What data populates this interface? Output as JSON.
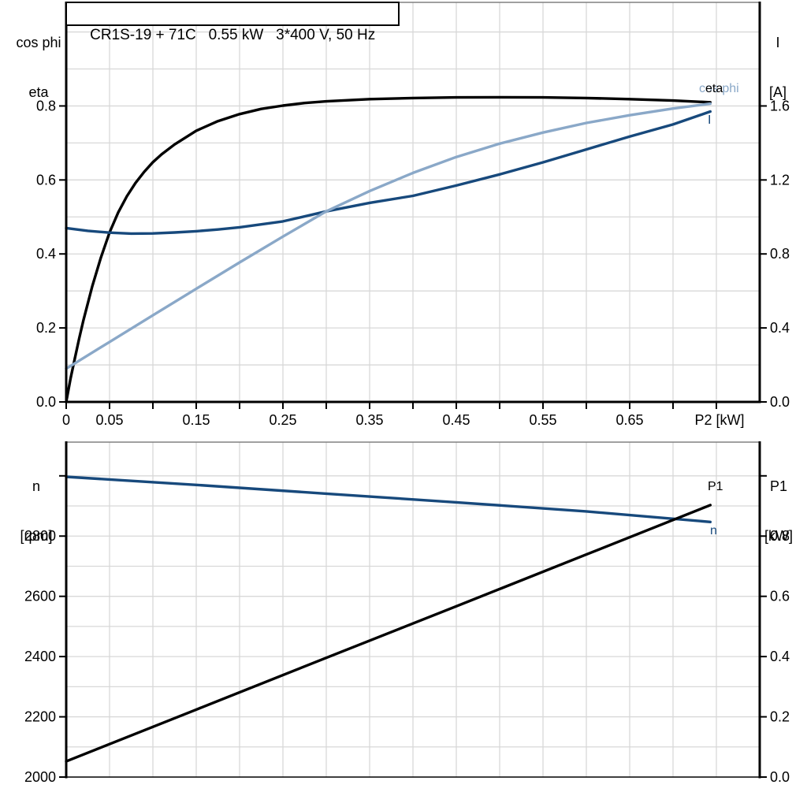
{
  "title": "CR1S-19 + 71C   0.55 kW   3*400 V, 50 Hz",
  "colors": {
    "black": "#000000",
    "dark_blue": "#17497c",
    "light_blue": "#8aa8c8",
    "grid": "#d8d8d8",
    "frame": "#808080",
    "axis": "#000000",
    "background": "#ffffff"
  },
  "chart_data": [
    {
      "type": "line",
      "title": "CR1S-19 + 71C   0.55 kW   3*400 V, 50 Hz",
      "x_axis": {
        "label": "P2 [kW]",
        "label_v": 0.75,
        "range": [
          0,
          0.8
        ],
        "grid": [
          0.05,
          0.1,
          0.15,
          0.2,
          0.25,
          0.3,
          0.35,
          0.4,
          0.45,
          0.5,
          0.55,
          0.6,
          0.65,
          0.7,
          0.75
        ],
        "ticks": [
          0,
          0.05,
          0.1,
          0.15,
          0.2,
          0.25,
          0.3,
          0.35,
          0.4,
          0.45,
          0.5,
          0.55,
          0.6,
          0.65,
          0.7,
          0.75
        ],
        "labels": [
          {
            "v": 0,
            "text": "0"
          },
          {
            "v": 0.05,
            "text": "0.05"
          },
          {
            "v": 0.15,
            "text": "0.15"
          },
          {
            "v": 0.25,
            "text": "0.25"
          },
          {
            "v": 0.35,
            "text": "0.35"
          },
          {
            "v": 0.45,
            "text": "0.45"
          },
          {
            "v": 0.55,
            "text": "0.55"
          },
          {
            "v": 0.65,
            "text": "0.65"
          }
        ]
      },
      "left_axis": {
        "header": [
          "cos phi",
          "eta"
        ],
        "range": [
          0,
          1.08
        ],
        "grid": [
          0.1,
          0.2,
          0.3,
          0.4,
          0.5,
          0.6,
          0.7,
          0.8,
          0.9,
          1.0
        ],
        "ticks": [
          {
            "v": 0.0,
            "text": "0.0"
          },
          {
            "v": 0.2,
            "text": "0.2"
          },
          {
            "v": 0.4,
            "text": "0.4"
          },
          {
            "v": 0.6,
            "text": "0.6"
          },
          {
            "v": 0.8,
            "text": "0.8"
          }
        ]
      },
      "right_axis": {
        "header": [
          "I",
          "[A]"
        ],
        "range": [
          0,
          2.16
        ],
        "ticks": [
          {
            "v": 0.0,
            "text": "0.0"
          },
          {
            "v": 0.4,
            "text": "0.4"
          },
          {
            "v": 0.8,
            "text": "0.8"
          },
          {
            "v": 1.2,
            "text": "1.2"
          },
          {
            "v": 1.6,
            "text": "1.6"
          }
        ]
      },
      "series": [
        {
          "name": "eta",
          "label": "eta",
          "axis": "left",
          "color": "black",
          "points": [
            [
              0,
              0
            ],
            [
              0.005,
              0.063
            ],
            [
              0.01,
              0.118
            ],
            [
              0.015,
              0.172
            ],
            [
              0.02,
              0.222
            ],
            [
              0.03,
              0.312
            ],
            [
              0.04,
              0.39
            ],
            [
              0.05,
              0.458
            ],
            [
              0.06,
              0.512
            ],
            [
              0.07,
              0.556
            ],
            [
              0.08,
              0.592
            ],
            [
              0.09,
              0.622
            ],
            [
              0.1,
              0.648
            ],
            [
              0.11,
              0.669
            ],
            [
              0.125,
              0.696
            ],
            [
              0.15,
              0.733
            ],
            [
              0.175,
              0.759
            ],
            [
              0.2,
              0.778
            ],
            [
              0.225,
              0.792
            ],
            [
              0.25,
              0.801
            ],
            [
              0.275,
              0.808
            ],
            [
              0.3,
              0.8125
            ],
            [
              0.35,
              0.8185
            ],
            [
              0.4,
              0.8215
            ],
            [
              0.45,
              0.823
            ],
            [
              0.5,
              0.8235
            ],
            [
              0.55,
              0.823
            ],
            [
              0.6,
              0.8215
            ],
            [
              0.65,
              0.8185
            ],
            [
              0.7,
              0.8145
            ],
            [
              0.743,
              0.81
            ]
          ]
        },
        {
          "name": "I",
          "label": "I",
          "axis": "right",
          "color": "dark_blue",
          "points": [
            [
              0,
              0.94
            ],
            [
              0.025,
              0.925
            ],
            [
              0.05,
              0.915
            ],
            [
              0.075,
              0.91
            ],
            [
              0.1,
              0.911
            ],
            [
              0.125,
              0.916
            ],
            [
              0.15,
              0.923
            ],
            [
              0.175,
              0.932
            ],
            [
              0.2,
              0.944
            ],
            [
              0.25,
              0.976
            ],
            [
              0.3,
              1.03
            ],
            [
              0.35,
              1.076
            ],
            [
              0.4,
              1.114
            ],
            [
              0.45,
              1.17
            ],
            [
              0.5,
              1.23
            ],
            [
              0.55,
              1.295
            ],
            [
              0.6,
              1.365
            ],
            [
              0.65,
              1.435
            ],
            [
              0.7,
              1.5
            ],
            [
              0.743,
              1.57
            ]
          ]
        },
        {
          "name": "cos phi",
          "label": "cos phi",
          "axis": "left",
          "color": "light_blue",
          "points": [
            [
              0,
              0.09
            ],
            [
              0.05,
              0.162
            ],
            [
              0.1,
              0.234
            ],
            [
              0.15,
              0.306
            ],
            [
              0.2,
              0.377
            ],
            [
              0.25,
              0.447
            ],
            [
              0.3,
              0.515
            ],
            [
              0.35,
              0.57
            ],
            [
              0.4,
              0.619
            ],
            [
              0.45,
              0.662
            ],
            [
              0.5,
              0.698
            ],
            [
              0.55,
              0.728
            ],
            [
              0.6,
              0.754
            ],
            [
              0.65,
              0.775
            ],
            [
              0.7,
              0.793
            ],
            [
              0.743,
              0.806
            ]
          ]
        }
      ]
    },
    {
      "type": "line",
      "x_axis": {
        "label": "",
        "range": [
          0,
          0.8
        ],
        "grid": [
          0.05,
          0.1,
          0.15,
          0.2,
          0.25,
          0.3,
          0.35,
          0.4,
          0.45,
          0.5,
          0.55,
          0.6,
          0.65,
          0.7,
          0.75
        ],
        "ticks": [],
        "labels": []
      },
      "left_axis": {
        "header": [
          "n",
          "[rpm]"
        ],
        "range": [
          2000,
          3112
        ],
        "grid": [
          2100,
          2200,
          2300,
          2400,
          2500,
          2600,
          2700,
          2800,
          2900,
          3000
        ],
        "ticks": [
          {
            "v": 2000,
            "text": "2000"
          },
          {
            "v": 2200,
            "text": "2200"
          },
          {
            "v": 2400,
            "text": "2400"
          },
          {
            "v": 2600,
            "text": "2600"
          },
          {
            "v": 2800,
            "text": "2800"
          },
          {
            "v": 3000,
            "text": ""
          }
        ]
      },
      "right_axis": {
        "header": [
          "P1",
          "[kW]"
        ],
        "range": [
          0,
          1.112
        ],
        "ticks": [
          {
            "v": 0.0,
            "text": "0.0"
          },
          {
            "v": 0.2,
            "text": "0.2"
          },
          {
            "v": 0.4,
            "text": "0.4"
          },
          {
            "v": 0.6,
            "text": "0.6"
          },
          {
            "v": 0.8,
            "text": "0.8"
          },
          {
            "v": 1.0,
            "text": ""
          }
        ]
      },
      "series": [
        {
          "name": "n",
          "label": "n",
          "axis": "left",
          "color": "dark_blue",
          "points": [
            [
              0,
              2997
            ],
            [
              0.15,
              2970
            ],
            [
              0.3,
              2941
            ],
            [
              0.45,
              2912
            ],
            [
              0.6,
              2882
            ],
            [
              0.743,
              2847
            ]
          ]
        },
        {
          "name": "P1",
          "label": "P1",
          "axis": "right",
          "color": "black",
          "points": [
            [
              0,
              0.052
            ],
            [
              0.15,
              0.224
            ],
            [
              0.3,
              0.396
            ],
            [
              0.45,
              0.567
            ],
            [
              0.6,
              0.739
            ],
            [
              0.743,
              0.903
            ]
          ]
        }
      ]
    }
  ]
}
